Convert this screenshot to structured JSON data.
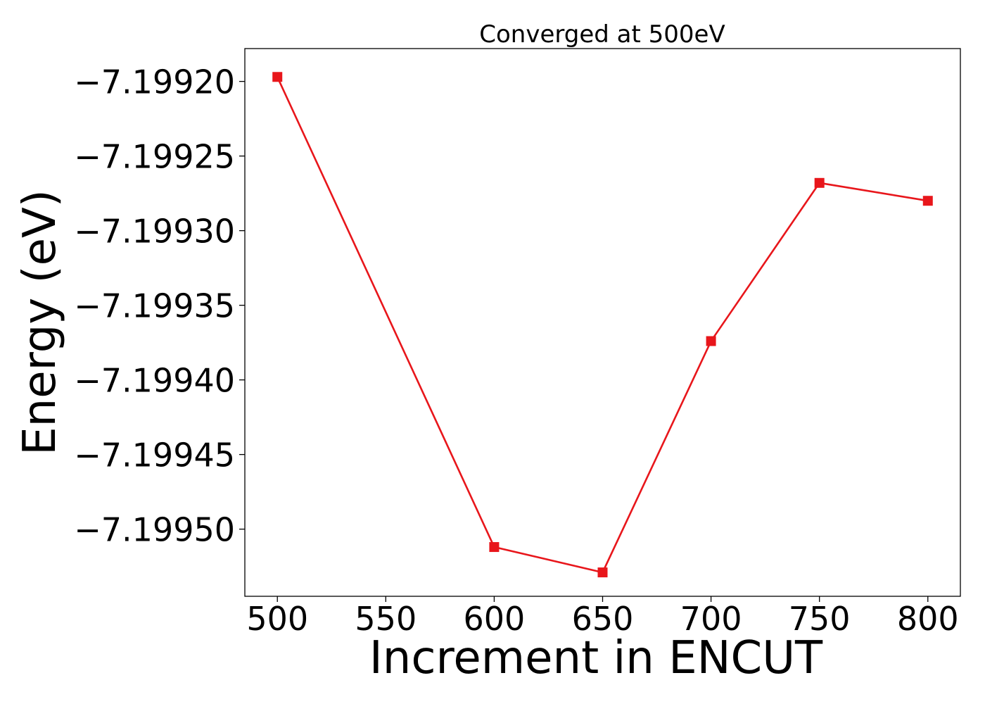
{
  "chart_data": {
    "type": "line",
    "title": "Converged at 500eV",
    "xlabel": "Increment in ENCUT",
    "ylabel": "Energy (eV)",
    "x": [
      500,
      600,
      650,
      700,
      750,
      800
    ],
    "series": [
      {
        "values": [
          -7.199197,
          -7.199512,
          -7.199529,
          -7.199374,
          -7.199268,
          -7.19928
        ],
        "color": "#e8161b",
        "marker": "square"
      }
    ],
    "x_ticks": [
      500,
      550,
      600,
      650,
      700,
      750,
      800
    ],
    "x_tick_labels": [
      "500",
      "550",
      "600",
      "650",
      "700",
      "750",
      "800"
    ],
    "y_ticks": [
      -7.1992,
      -7.19925,
      -7.1993,
      -7.19935,
      -7.1994,
      -7.19945,
      -7.1995
    ],
    "y_tick_labels": [
      "−7.19920",
      "−7.19925",
      "−7.19930",
      "−7.19935",
      "−7.19940",
      "−7.19945",
      "−7.19950"
    ],
    "xlim": [
      485,
      815
    ],
    "ylim": [
      -7.199545,
      -7.199178
    ],
    "grid": false,
    "legend": false
  }
}
